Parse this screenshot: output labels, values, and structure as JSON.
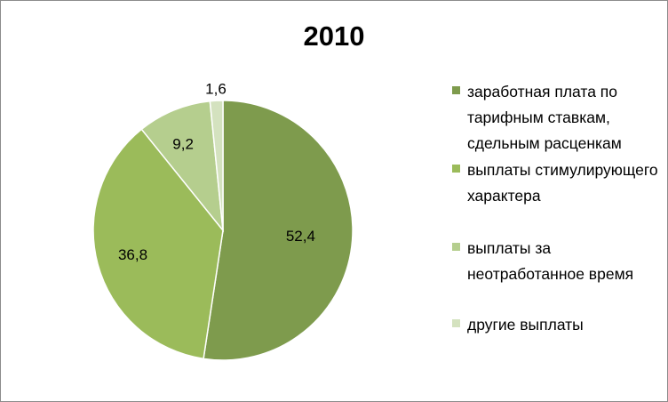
{
  "chart_data": {
    "type": "pie",
    "title": "2010",
    "categories": [
      "заработная плата по тарифным ставкам, сдельным расценкам",
      "выплаты стимулирующего характера",
      "выплаты за неотработанное время",
      "другие выплаты"
    ],
    "values": [
      52.4,
      36.8,
      9.2,
      1.6
    ],
    "value_labels": [
      "52,4",
      "36,8",
      "9,2",
      "1,6"
    ],
    "colors": [
      "#7e9b4d",
      "#9bbb5a",
      "#b5ce8e",
      "#d4e2bf"
    ],
    "legend_placement": "right"
  },
  "legend": {
    "items": [
      {
        "label": "заработная плата по тарифным ставкам, сдельным расценкам"
      },
      {
        "label": "выплаты стимулирующего характера"
      },
      {
        "label": "выплаты за неотработанное время"
      },
      {
        "label": "другие выплаты"
      }
    ]
  }
}
